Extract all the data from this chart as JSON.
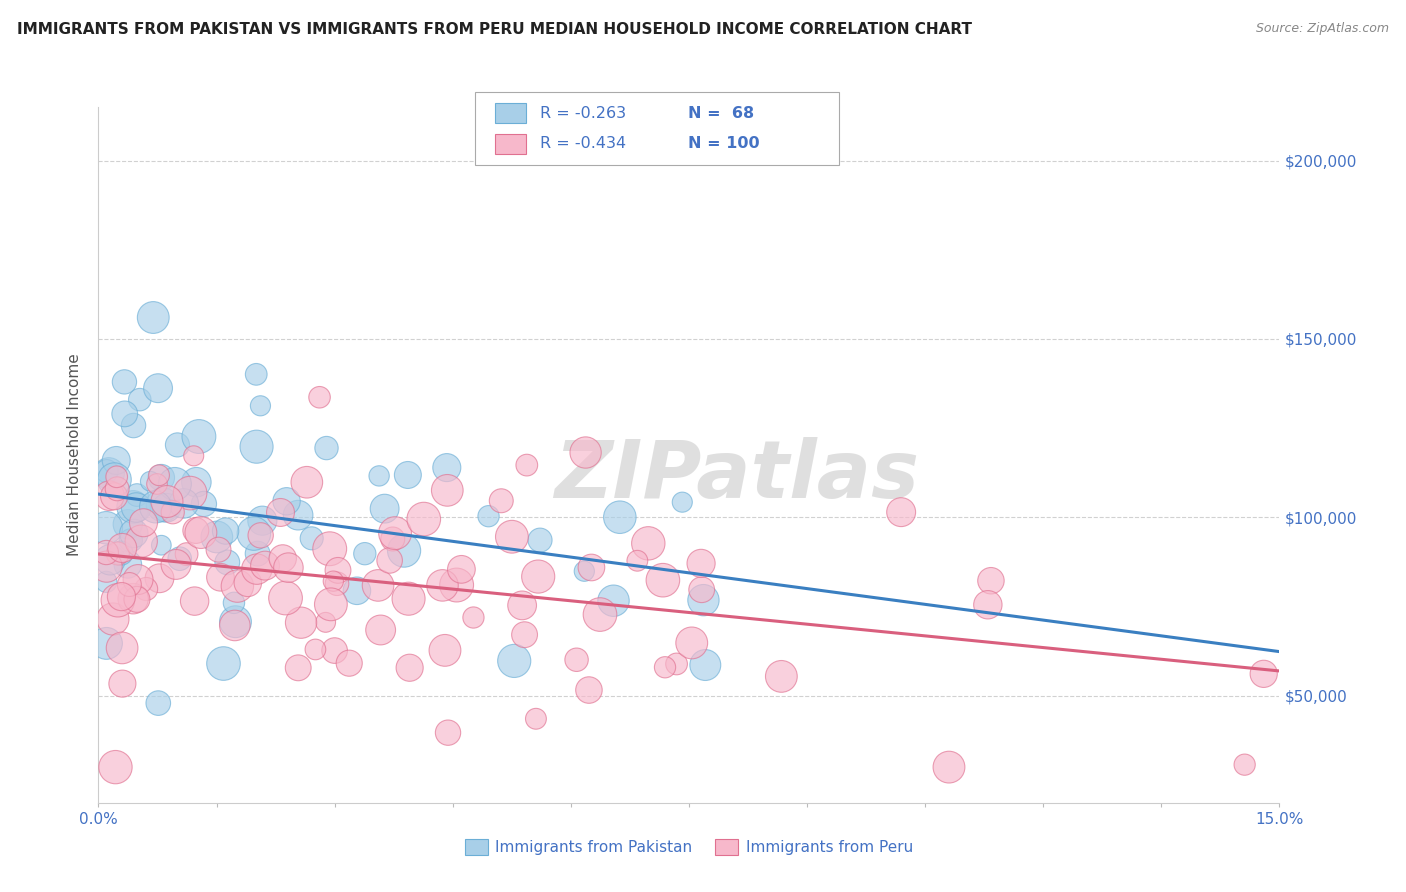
{
  "title": "IMMIGRANTS FROM PAKISTAN VS IMMIGRANTS FROM PERU MEDIAN HOUSEHOLD INCOME CORRELATION CHART",
  "source": "Source: ZipAtlas.com",
  "ylabel": "Median Household Income",
  "xlim": [
    0.0,
    0.15
  ],
  "ylim": [
    20000,
    215000
  ],
  "xticks": [
    0.0,
    0.015,
    0.03,
    0.045,
    0.06,
    0.075,
    0.09,
    0.105,
    0.12,
    0.135,
    0.15
  ],
  "xticklabels": [
    "0.0%",
    "",
    "",
    "",
    "",
    "",
    "",
    "",
    "",
    "",
    "15.0%"
  ],
  "yticks": [
    50000,
    100000,
    150000,
    200000
  ],
  "yticklabels": [
    "$50,000",
    "$100,000",
    "$150,000",
    "$200,000"
  ],
  "watermark": "ZIPatlas",
  "legend_r_pak": "R = -0.263",
  "legend_n_pak": "N =  68",
  "legend_r_peru": "R = -0.434",
  "legend_n_peru": "N = 100",
  "pakistan_color": "#a8cfe8",
  "peru_color": "#f7b8cb",
  "pakistan_edge_color": "#6baed6",
  "peru_edge_color": "#e07090",
  "pakistan_line_color": "#3a7fc1",
  "peru_line_color": "#d95f7e",
  "background_color": "#ffffff",
  "grid_color": "#cccccc",
  "pak_intercept": 110000,
  "pak_slope": -200000,
  "peru_intercept": 88000,
  "peru_slope": -230000
}
